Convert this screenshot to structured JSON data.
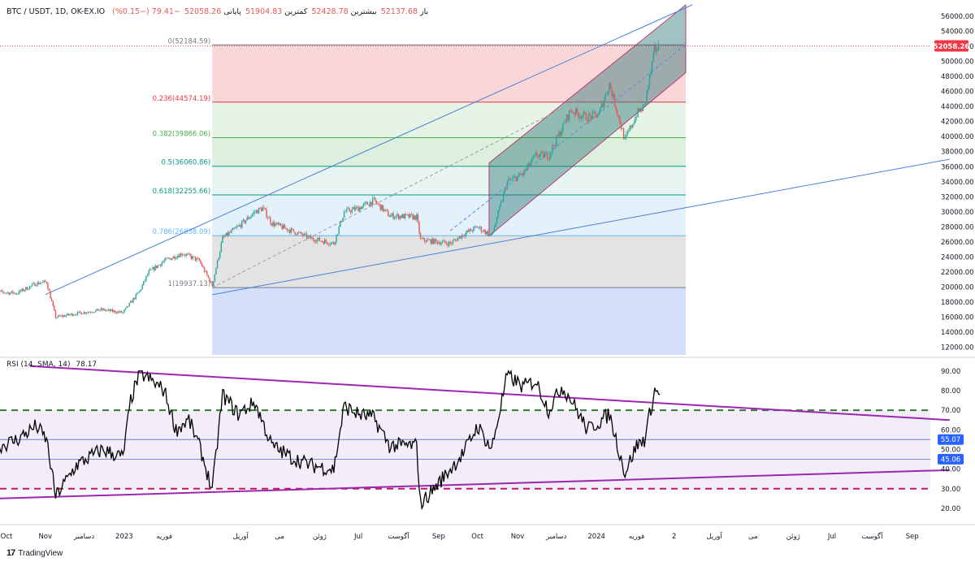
{
  "header": {
    "symbol": "BTC / USDT, 1D, OK-EX.IO",
    "open_label": "باز",
    "open": "52137.68",
    "high_label": "بیشترین",
    "high": "52428.78",
    "low_label": "کمترین",
    "low": "51904.83",
    "close_label": "پایانی",
    "close": "52058.26",
    "change": "−79.41 (−0.15%)"
  },
  "rsi_header": {
    "label": "RSI (14, SMA, 14)",
    "value": "78.17"
  },
  "footer": {
    "brand": "TradingView",
    "logo": "17"
  },
  "colors": {
    "up": "#26a69a",
    "down": "#ef5350",
    "rsi_line": "#000000",
    "trend_purple": "#9c27b0",
    "channel": "#1e6e6e",
    "blue_line": "#4a7fd6",
    "price_badge": "#f23645",
    "rsi_badge": "#2962ff"
  },
  "chart_data": [
    {
      "type": "candlestick",
      "title": "",
      "ylim": [
        11000,
        57500
      ],
      "y_ticks": [
        "56000.00",
        "54000.00",
        "52000.00",
        "50000.00",
        "48000.00",
        "46000.00",
        "44000.00",
        "42000.00",
        "40000.00",
        "38000.00",
        "36000.00",
        "34000.00",
        "32000.00",
        "30000.00",
        "28000.00",
        "26000.00",
        "24000.00",
        "22000.00",
        "20000.00",
        "18000.00",
        "16000.00",
        "14000.00",
        "12000.00"
      ],
      "last_price": "52058.26",
      "x_ticks": [
        "Oct",
        "Nov",
        "دسامبر",
        "2023",
        "فوریه",
        "آوریل",
        "می",
        "ژوئن",
        "Jul",
        "آگوست",
        "Sep",
        "Oct",
        "Nov",
        "دسامبر",
        "2024",
        "فوریه",
        "2",
        "آوریل",
        "می",
        "ژوئن",
        "Jul",
        "آگوست",
        "Sep"
      ],
      "x_tick_dates": [
        "2022-10-01",
        "2022-11-01",
        "2022-12-01",
        "2023-01-01",
        "2023-02-01",
        "2023-04-01",
        "2023-05-01",
        "2023-06-01",
        "2023-07-01",
        "2023-08-01",
        "2023-09-01",
        "2023-10-01",
        "2023-11-01",
        "2023-12-01",
        "2024-01-01",
        "2024-02-01",
        "2024-03-01",
        "2024-04-01",
        "2024-05-01",
        "2024-06-01",
        "2024-07-01",
        "2024-08-01",
        "2024-09-01"
      ],
      "price_path": [
        [
          "2022-09-20",
          19400
        ],
        [
          "2022-10-10",
          19200
        ],
        [
          "2022-10-25",
          20500
        ],
        [
          "2022-11-02",
          20700
        ],
        [
          "2022-11-09",
          16000
        ],
        [
          "2022-11-25",
          16500
        ],
        [
          "2022-12-15",
          17000
        ],
        [
          "2022-12-31",
          16600
        ],
        [
          "2023-01-13",
          19500
        ],
        [
          "2023-01-20",
          22000
        ],
        [
          "2023-02-01",
          23500
        ],
        [
          "2023-02-15",
          24500
        ],
        [
          "2023-02-28",
          23500
        ],
        [
          "2023-03-10",
          20200
        ],
        [
          "2023-03-18",
          26500
        ],
        [
          "2023-03-30",
          28000
        ],
        [
          "2023-04-12",
          30000
        ],
        [
          "2023-04-18",
          30500
        ],
        [
          "2023-04-25",
          28500
        ],
        [
          "2023-05-10",
          27500
        ],
        [
          "2023-05-25",
          26500
        ],
        [
          "2023-06-12",
          25800
        ],
        [
          "2023-06-20",
          30000
        ],
        [
          "2023-07-01",
          30500
        ],
        [
          "2023-07-13",
          31500
        ],
        [
          "2023-07-25",
          29500
        ],
        [
          "2023-08-15",
          29300
        ],
        [
          "2023-08-18",
          26300
        ],
        [
          "2023-09-10",
          25800
        ],
        [
          "2023-09-20",
          27000
        ],
        [
          "2023-10-01",
          28000
        ],
        [
          "2023-10-12",
          26800
        ],
        [
          "2023-10-24",
          34000
        ],
        [
          "2023-11-05",
          35000
        ],
        [
          "2023-11-15",
          37500
        ],
        [
          "2023-11-25",
          37500
        ],
        [
          "2023-12-05",
          41000
        ],
        [
          "2023-12-12",
          43500
        ],
        [
          "2023-12-25",
          42500
        ],
        [
          "2024-01-03",
          43000
        ],
        [
          "2024-01-11",
          47000
        ],
        [
          "2024-01-23",
          39500
        ],
        [
          "2024-02-01",
          43000
        ],
        [
          "2024-02-07",
          44000
        ],
        [
          "2024-02-15",
          51500
        ],
        [
          "2024-02-19",
          52058
        ]
      ],
      "fib_levels": [
        {
          "ratio": "0",
          "price": 52184.59,
          "label": "0(52184.59)",
          "color": "#787b86"
        },
        {
          "ratio": "0.236",
          "price": 44574.19,
          "label": "0.236(44574.19)",
          "color": "#f23645"
        },
        {
          "ratio": "0.382",
          "price": 39866.06,
          "label": "0.382(39866.06)",
          "color": "#4caf50"
        },
        {
          "ratio": "0.5",
          "price": 36060.86,
          "label": "0.5(36060.86)",
          "color": "#089981"
        },
        {
          "ratio": "0.618",
          "price": 32255.66,
          "label": "0.618(32255.66)",
          "color": "#089981"
        },
        {
          "ratio": "0.786",
          "price": 26838.09,
          "label": "0.786(26838.09)",
          "color": "#64b5f6"
        },
        {
          "ratio": "1",
          "price": 19937.13,
          "label": "1(19937.13)",
          "color": "#787b86"
        }
      ],
      "fib_range_dates": [
        "2023-03-10",
        "2024-03-10"
      ],
      "fib_bottom_price": 11000,
      "channel": {
        "start": "2023-10-10",
        "end": "2024-03-10",
        "lower_start": 26800,
        "lower_end": 48500,
        "upper_start": 36500,
        "upper_end": 57500
      },
      "lines": [
        {
          "from": [
            "2022-11-01",
            19000
          ],
          "to": [
            "2024-03-15",
            57500
          ],
          "color": "#4a7fd6",
          "dash": false
        },
        {
          "from": [
            "2023-03-10",
            19000
          ],
          "to": [
            "2024-09-30",
            37000
          ],
          "color": "#4a7fd6",
          "dash": false
        },
        {
          "from": [
            "2023-03-10",
            19937
          ],
          "to": [
            "2024-03-10",
            52184
          ],
          "color": "#9e9e9e",
          "dash": true
        },
        {
          "from": [
            "2023-09-10",
            27500
          ],
          "to": [
            "2024-03-10",
            52200
          ],
          "color": "#5b8bd9",
          "dash": true
        }
      ]
    },
    {
      "type": "line",
      "title": "",
      "ylim": [
        15,
        92
      ],
      "y_ticks": [
        "90.00",
        "80.00",
        "70.00",
        "60.00",
        "50.00",
        "40.00",
        "30.00",
        "20.00"
      ],
      "badges": [
        "55.07",
        "45.06"
      ],
      "band": [
        30,
        70
      ],
      "mid_lines": [
        55.07,
        45.06
      ],
      "rsi_path": [
        [
          "2022-09-20",
          50
        ],
        [
          "2022-10-10",
          55
        ],
        [
          "2022-10-25",
          62
        ],
        [
          "2022-11-02",
          55
        ],
        [
          "2022-11-09",
          26
        ],
        [
          "2022-11-25",
          42
        ],
        [
          "2022-12-15",
          50
        ],
        [
          "2022-12-31",
          46
        ],
        [
          "2023-01-06",
          75
        ],
        [
          "2023-01-13",
          89
        ],
        [
          "2023-01-20",
          86
        ],
        [
          "2023-02-01",
          80
        ],
        [
          "2023-02-10",
          60
        ],
        [
          "2023-02-20",
          65
        ],
        [
          "2023-03-01",
          50
        ],
        [
          "2023-03-10",
          29
        ],
        [
          "2023-03-18",
          78
        ],
        [
          "2023-03-30",
          68
        ],
        [
          "2023-04-12",
          74
        ],
        [
          "2023-04-25",
          52
        ],
        [
          "2023-05-10",
          46
        ],
        [
          "2023-05-25",
          42
        ],
        [
          "2023-06-12",
          40
        ],
        [
          "2023-06-20",
          72
        ],
        [
          "2023-07-01",
          68
        ],
        [
          "2023-07-13",
          66
        ],
        [
          "2023-07-25",
          52
        ],
        [
          "2023-08-15",
          52
        ],
        [
          "2023-08-18",
          22
        ],
        [
          "2023-09-10",
          40
        ],
        [
          "2023-09-20",
          48
        ],
        [
          "2023-10-01",
          62
        ],
        [
          "2023-10-12",
          50
        ],
        [
          "2023-10-24",
          88
        ],
        [
          "2023-11-05",
          82
        ],
        [
          "2023-11-15",
          85
        ],
        [
          "2023-11-25",
          70
        ],
        [
          "2023-12-05",
          82
        ],
        [
          "2023-12-12",
          76
        ],
        [
          "2023-12-25",
          60
        ],
        [
          "2024-01-03",
          64
        ],
        [
          "2024-01-11",
          68
        ],
        [
          "2024-01-23",
          38
        ],
        [
          "2024-02-01",
          52
        ],
        [
          "2024-02-07",
          55
        ],
        [
          "2024-02-15",
          80
        ],
        [
          "2024-02-19",
          78
        ]
      ],
      "trendlines": [
        {
          "from": [
            "2022-10-20",
            92.5
          ],
          "to": [
            "2024-09-30",
            65
          ]
        },
        {
          "from": [
            "2022-09-25",
            25
          ],
          "to": [
            "2024-09-30",
            39.5
          ]
        }
      ]
    }
  ]
}
